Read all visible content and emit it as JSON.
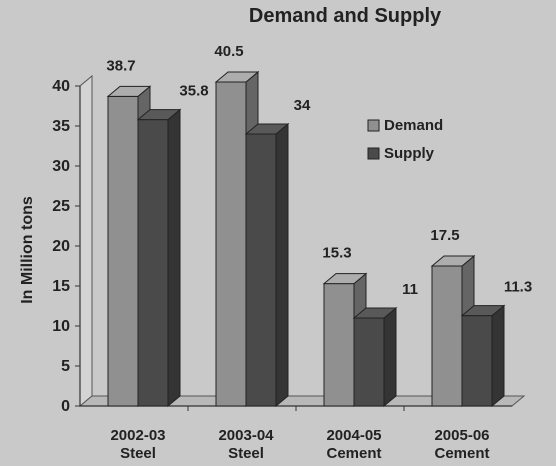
{
  "chart_data": {
    "type": "bar",
    "title": "Demand and Supply",
    "ylabel": "In Million tons",
    "xlabel": "",
    "categories": [
      [
        "2002-03",
        "Steel"
      ],
      [
        "2003-04",
        "Steel"
      ],
      [
        "2004-05",
        "Cement"
      ],
      [
        "2005-06",
        "Cement"
      ]
    ],
    "series": [
      {
        "name": "Demand",
        "values": [
          38.7,
          40.5,
          15.3,
          17.5
        ],
        "color": "#909090"
      },
      {
        "name": "Supply",
        "values": [
          35.8,
          34,
          11,
          11.3
        ],
        "color": "#4a4a4a"
      }
    ],
    "ylim": [
      0,
      40
    ],
    "yticks": [
      0,
      5,
      10,
      15,
      20,
      25,
      30,
      35,
      40
    ],
    "grid": false,
    "legend": "right",
    "style": "3d-bar"
  }
}
